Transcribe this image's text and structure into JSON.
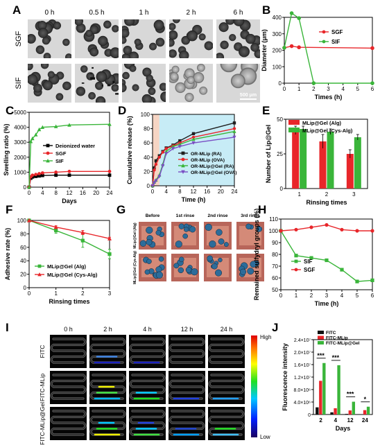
{
  "panels": {
    "A": {
      "letter": "A",
      "times": [
        "0 h",
        "0.5 h",
        "1 h",
        "2 h",
        "6 h"
      ],
      "rows": [
        "SGF",
        "SIF"
      ],
      "scalebar": "500 μm"
    },
    "B": {
      "letter": "B"
    },
    "C": {
      "letter": "C"
    },
    "D": {
      "letter": "D"
    },
    "E": {
      "letter": "E"
    },
    "F": {
      "letter": "F"
    },
    "G": {
      "letter": "G",
      "cols": [
        "Before",
        "1st rinse",
        "2nd rinse",
        "3rd rinse"
      ],
      "rows": [
        "MLip@Gel (Alg)",
        "MLip@Gel (Cys-Alg)"
      ]
    },
    "H": {
      "letter": "H"
    },
    "I": {
      "letter": "I",
      "times": [
        "0 h",
        "2 h",
        "4 h",
        "12 h",
        "24 h"
      ],
      "rows": [
        "FITC",
        "FITC-MLip",
        "FITC-MLip@Gel"
      ],
      "colorbar_high": "High",
      "colorbar_low": "Low"
    },
    "J": {
      "letter": "J"
    }
  },
  "chart_data": [
    {
      "id": "B",
      "type": "line",
      "xlabel": "Times (h)",
      "ylabel": "Diameter (μm)",
      "xlim": [
        0,
        6
      ],
      "ylim": [
        0,
        400
      ],
      "xticks": [
        0,
        1,
        2,
        3,
        4,
        5,
        6
      ],
      "yticks": [
        0,
        100,
        200,
        300,
        400
      ],
      "legend_position": "top-right",
      "series": [
        {
          "name": "SGF",
          "color": "#e8262a",
          "marker": "circle",
          "x": [
            0,
            0.5,
            1,
            6
          ],
          "y": [
            215,
            225,
            218,
            213
          ]
        },
        {
          "name": "SIF",
          "color": "#3ab53a",
          "marker": "circle",
          "x": [
            0,
            0.5,
            1,
            2,
            6
          ],
          "y": [
            215,
            425,
            395,
            0,
            0
          ]
        }
      ]
    },
    {
      "id": "C",
      "type": "line",
      "xlabel": "Days",
      "ylabel": "Swelling ratio (%)",
      "xlim": [
        0,
        24
      ],
      "ylim": [
        0,
        5000
      ],
      "xticks": [
        0,
        4,
        8,
        12,
        16,
        20,
        24
      ],
      "yticks": [
        0,
        1000,
        2000,
        3000,
        4000,
        5000
      ],
      "legend_position": "right",
      "series": [
        {
          "name": "Deionized water",
          "color": "#000000",
          "marker": "square",
          "x": [
            0,
            0.5,
            1,
            2,
            3,
            4,
            8,
            12,
            24
          ],
          "y": [
            0,
            600,
            680,
            720,
            750,
            780,
            800,
            800,
            800
          ]
        },
        {
          "name": "SGF",
          "color": "#e8262a",
          "marker": "circle",
          "x": [
            0,
            0.5,
            1,
            2,
            3,
            4,
            8,
            12,
            24
          ],
          "y": [
            0,
            700,
            800,
            850,
            900,
            950,
            1000,
            1050,
            1050
          ]
        },
        {
          "name": "SIF",
          "color": "#3ab53a",
          "marker": "triangle",
          "x": [
            0,
            0.5,
            1,
            2,
            3,
            4,
            8,
            12,
            24
          ],
          "y": [
            0,
            3050,
            3250,
            3500,
            3850,
            4000,
            4050,
            4150,
            4200
          ]
        }
      ]
    },
    {
      "id": "D",
      "type": "line",
      "xlabel": "Time (h)",
      "ylabel": "Cumulative release (%)",
      "xlim": [
        0,
        24
      ],
      "ylim": [
        0,
        100
      ],
      "xticks": [
        0,
        4,
        8,
        12,
        16,
        20,
        24
      ],
      "yticks": [
        0,
        20,
        40,
        60,
        80,
        100
      ],
      "legend_position": "bottom-right",
      "shaded_regions": [
        {
          "from": 0,
          "to": 2,
          "color": "#f6d5c4"
        },
        {
          "from": 2,
          "to": 24,
          "color": "#c7ecf6"
        }
      ],
      "series": [
        {
          "name": "OR-MLip (RA)",
          "color": "#1f1f1f",
          "marker": "square",
          "x": [
            0,
            0.5,
            1,
            2,
            3,
            4,
            6,
            8,
            12,
            24
          ],
          "y": [
            0,
            25,
            35,
            42,
            48,
            53,
            57,
            63,
            73,
            88
          ]
        },
        {
          "name": "OR-MLip (OVA)",
          "color": "#e8262a",
          "marker": "circle",
          "x": [
            0,
            0.5,
            1,
            2,
            3,
            4,
            6,
            8,
            12,
            24
          ],
          "y": [
            0,
            22,
            30,
            40,
            47,
            52,
            56,
            60,
            68,
            80
          ]
        },
        {
          "name": "OR-MLip@Gel (RA)",
          "color": "#3ab53a",
          "marker": "triangle",
          "x": [
            0,
            0.5,
            1,
            2,
            3,
            4,
            6,
            8,
            12,
            24
          ],
          "y": [
            0,
            5,
            8,
            15,
            30,
            48,
            55,
            58,
            65,
            76
          ]
        },
        {
          "name": "OR-MLip@Gel (OVA)",
          "color": "#7a4fc4",
          "marker": "triangle-down",
          "x": [
            0,
            0.5,
            1,
            2,
            3,
            4,
            6,
            8,
            12,
            24
          ],
          "y": [
            0,
            4,
            7,
            13,
            28,
            45,
            52,
            55,
            60,
            68
          ]
        }
      ]
    },
    {
      "id": "E",
      "type": "bar",
      "xlabel": "Rinsing times",
      "ylabel": "Number of Lip@Gel",
      "categories": [
        "1",
        "2",
        "3"
      ],
      "ylim": [
        0,
        50
      ],
      "yticks": [
        0,
        25,
        50
      ],
      "legend_position": "top",
      "series": [
        {
          "name": "MLip@Gel (Alg)",
          "color": "#e8262a",
          "values": [
            42,
            34,
            25
          ],
          "errors": [
            3,
            5,
            3
          ]
        },
        {
          "name": "MLip@Gel (Cys-Alg)",
          "color": "#3ab53a",
          "values": [
            43,
            41,
            37
          ],
          "errors": [
            2,
            2,
            2
          ]
        }
      ]
    },
    {
      "id": "F",
      "type": "line",
      "xlabel": "Rinsing times",
      "ylabel": "Adhesive rate (%)",
      "xlim": [
        0,
        3
      ],
      "ylim": [
        0,
        100
      ],
      "xticks": [
        0,
        1,
        2,
        3
      ],
      "yticks": [
        0,
        20,
        40,
        60,
        80,
        100
      ],
      "legend_position": "bottom-left",
      "series": [
        {
          "name": "MLip@Gel (Alg)",
          "color": "#3ab53a",
          "marker": "square",
          "x": [
            0,
            1,
            2,
            3
          ],
          "y": [
            100,
            85,
            70,
            50
          ],
          "errors": [
            0,
            4,
            10,
            7
          ]
        },
        {
          "name": "MLip@Gel (Cys-Alg)",
          "color": "#e8262a",
          "marker": "triangle",
          "x": [
            0,
            1,
            2,
            3
          ],
          "y": [
            100,
            90,
            82,
            73
          ],
          "errors": [
            0,
            2,
            3,
            2
          ]
        }
      ]
    },
    {
      "id": "H",
      "type": "line",
      "xlabel": "Time (h)",
      "ylabel": "Remained sulfydryl groups (%)",
      "xlim": [
        0,
        6
      ],
      "ylim": [
        50,
        110
      ],
      "xticks": [
        0,
        1,
        2,
        3,
        4,
        5,
        6
      ],
      "yticks": [
        50,
        60,
        70,
        80,
        90,
        100,
        110
      ],
      "legend_position": "bottom-left",
      "series": [
        {
          "name": "SIF",
          "color": "#3ab53a",
          "marker": "square",
          "x": [
            0,
            1,
            2,
            3,
            4,
            5,
            6
          ],
          "y": [
            100,
            79,
            77,
            75,
            67,
            57,
            58
          ]
        },
        {
          "name": "SGF",
          "color": "#e8262a",
          "marker": "circle",
          "x": [
            0,
            1,
            2,
            3,
            4,
            5,
            6
          ],
          "y": [
            100,
            101,
            103,
            105,
            101,
            100,
            100
          ]
        }
      ]
    },
    {
      "id": "J",
      "type": "bar",
      "xlabel": "Days",
      "ylabel": "Fluorescence intensity",
      "categories": [
        "2",
        "4",
        "12",
        "24"
      ],
      "ylim": [
        0,
        24000000
      ],
      "yticks": [
        0,
        4000000,
        8000000,
        12000000,
        16000000,
        20000000,
        24000000
      ],
      "ytick_labels": [
        "0",
        "4.0×10⁶",
        "8.0×10⁶",
        "1.2×10⁷",
        "1.6×10⁷",
        "2.0×10⁷",
        "2.4×10⁷"
      ],
      "legend_position": "top",
      "series": [
        {
          "name": "FITC",
          "color": "#111111",
          "values": [
            2300000,
            700000,
            200000,
            100000
          ]
        },
        {
          "name": "FITC-MLip",
          "color": "#e8262a",
          "values": [
            10800000,
            2000000,
            1300000,
            1400000
          ]
        },
        {
          "name": "FITC-MLip@Gel",
          "color": "#3ab53a",
          "values": [
            16500000,
            15800000,
            4100000,
            2500000
          ]
        }
      ],
      "significance": [
        {
          "category": "2",
          "label": "***"
        },
        {
          "category": "4",
          "label": "***"
        },
        {
          "category": "12",
          "label": "***"
        },
        {
          "category": "24",
          "label": "*"
        }
      ]
    }
  ]
}
